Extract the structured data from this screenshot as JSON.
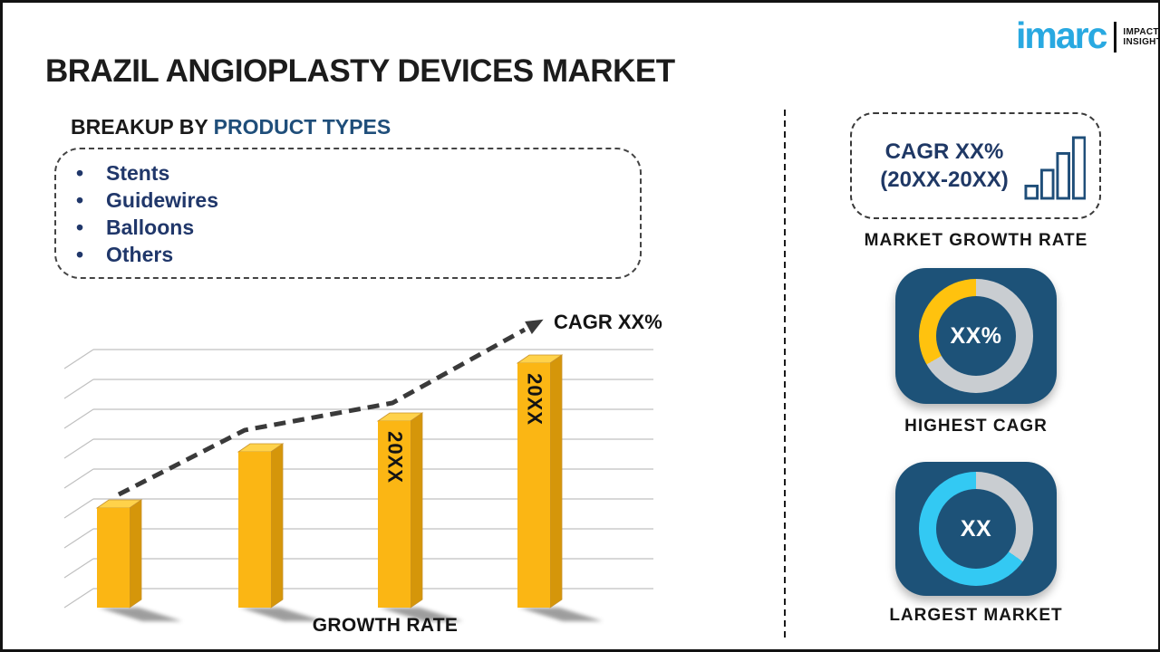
{
  "header": {
    "title": "BRAZIL ANGIOPLASTY DEVICES MARKET",
    "logo": {
      "brand": "imarc",
      "brand_color": "#29A9E1",
      "tagline": [
        "IMPACTFUL",
        "INSIGHTS"
      ]
    }
  },
  "breakup": {
    "heading_prefix": "BREAKUP BY ",
    "heading_accent": "PRODUCT TYPES",
    "bullet": "•",
    "items": [
      "Stents",
      "Guidewires",
      "Balloons",
      "Others"
    ]
  },
  "chart_data": {
    "type": "bar",
    "title": "GROWTH RATE",
    "bar_labels": [
      "",
      "",
      "20XX",
      "20XX"
    ],
    "values_relative": [
      0.407,
      0.637,
      0.763,
      1.0
    ],
    "trend_label": "CAGR XX%",
    "legend": false,
    "axis": {
      "x_visible": false,
      "y_visible": false,
      "gridlines": 9
    },
    "colors": {
      "bar_front": "#FBB614",
      "bar_top": "#FFD24A",
      "bar_side": "#D5960A",
      "trend": "#3A3A3A",
      "grid": "#C0C0C0"
    }
  },
  "right_panel": {
    "growth_card": {
      "line1": "CAGR XX%",
      "line2": "(20XX-20XX)",
      "icon": "bar-chart-icon",
      "caption": "MARKET GROWTH RATE"
    },
    "highest_cagr": {
      "value": "XX%",
      "caption": "HIGHEST CAGR",
      "card_color": "#1D5278",
      "ring_segments": [
        [
          "#C9CDD1",
          0,
          240
        ],
        [
          "#FFC20E",
          240,
          360
        ]
      ]
    },
    "largest_market": {
      "value": "XX",
      "caption": "LARGEST MARKET",
      "card_color": "#1D5278",
      "ring_segments": [
        [
          "#C9CDD1",
          0,
          125
        ],
        [
          "#33C9F3",
          125,
          360
        ]
      ]
    }
  }
}
